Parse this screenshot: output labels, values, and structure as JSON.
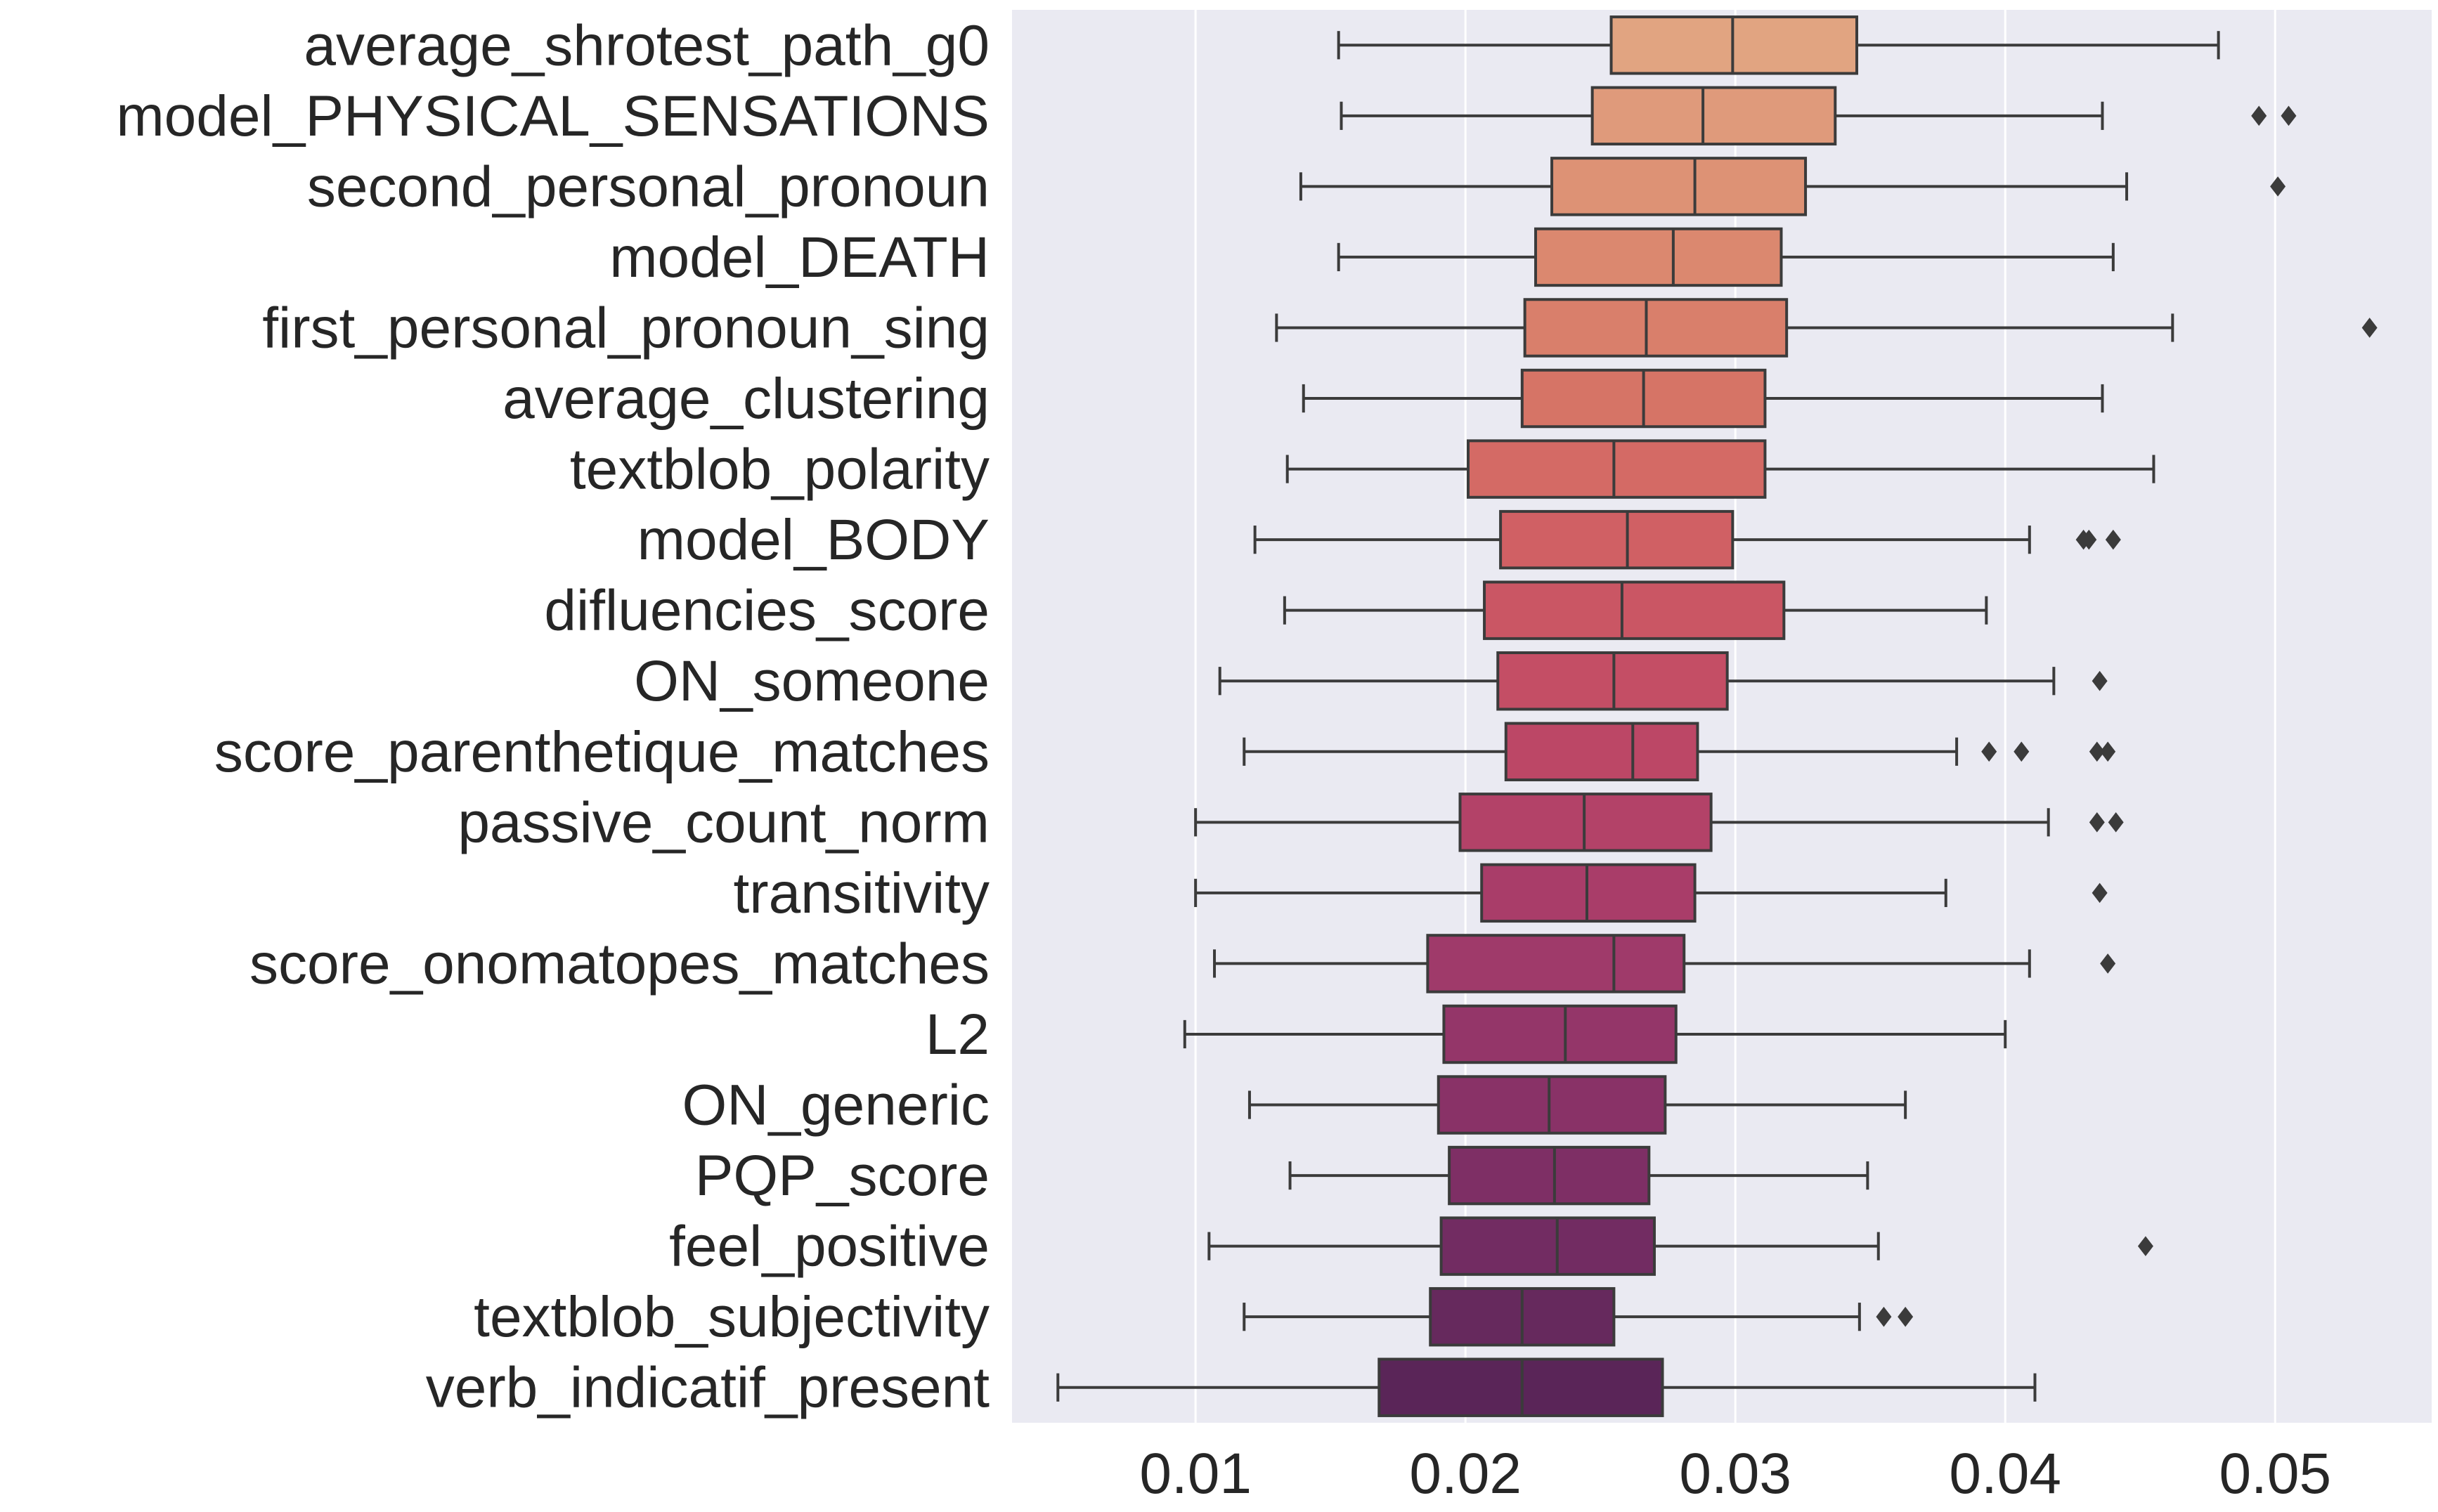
{
  "chart_data": {
    "type": "boxplot",
    "orientation": "horizontal",
    "title": "",
    "xlabel": "",
    "ylabel": "",
    "xlim": [
      0.0032,
      0.0558
    ],
    "xticks": [
      0.01,
      0.02,
      0.03,
      0.04,
      0.05
    ],
    "xtick_labels": [
      "0.01",
      "0.02",
      "0.03",
      "0.04",
      "0.05"
    ],
    "grid": "vertical",
    "background": "#eaeaf2",
    "categories": [
      {
        "label": "average_shrotest_path_g0",
        "whislo": 0.0153,
        "q1": 0.0254,
        "med": 0.0299,
        "q3": 0.0345,
        "whishi": 0.0479,
        "fliers": [],
        "color": "#e1a481"
      },
      {
        "label": "model_PHYSICAL_SENSATIONS",
        "whislo": 0.0154,
        "q1": 0.0247,
        "med": 0.0288,
        "q3": 0.0337,
        "whishi": 0.0436,
        "fliers": [
          0.0494,
          0.0505
        ],
        "color": "#df9a7b"
      },
      {
        "label": "second_personal_pronoun",
        "whislo": 0.0139,
        "q1": 0.0232,
        "med": 0.0285,
        "q3": 0.0326,
        "whishi": 0.0445,
        "fliers": [
          0.0501
        ],
        "color": "#dd9275"
      },
      {
        "label": "model_DEATH",
        "whislo": 0.0153,
        "q1": 0.0226,
        "med": 0.0277,
        "q3": 0.0317,
        "whishi": 0.044,
        "fliers": [],
        "color": "#db886f"
      },
      {
        "label": "first_personal_pronoun_sing",
        "whislo": 0.013,
        "q1": 0.0222,
        "med": 0.0267,
        "q3": 0.0319,
        "whishi": 0.0462,
        "fliers": [
          0.0535
        ],
        "color": "#d97f6b"
      },
      {
        "label": "average_clustering",
        "whislo": 0.014,
        "q1": 0.0221,
        "med": 0.0266,
        "q3": 0.0311,
        "whishi": 0.0436,
        "fliers": [],
        "color": "#d67466"
      },
      {
        "label": "textblob_polarity",
        "whislo": 0.0134,
        "q1": 0.0201,
        "med": 0.0255,
        "q3": 0.0311,
        "whishi": 0.0455,
        "fliers": [],
        "color": "#d46a65"
      },
      {
        "label": "model_BODY",
        "whislo": 0.0122,
        "q1": 0.0213,
        "med": 0.026,
        "q3": 0.0299,
        "whishi": 0.0409,
        "fliers": [
          0.0429,
          0.0431,
          0.044
        ],
        "color": "#d06064"
      },
      {
        "label": "difluencies_score",
        "whislo": 0.0133,
        "q1": 0.0207,
        "med": 0.0258,
        "q3": 0.0318,
        "whishi": 0.0393,
        "fliers": [],
        "color": "#ca5664"
      },
      {
        "label": "ON_someone",
        "whislo": 0.0109,
        "q1": 0.0212,
        "med": 0.0255,
        "q3": 0.0297,
        "whishi": 0.0418,
        "fliers": [
          0.0435
        ],
        "color": "#c44e65"
      },
      {
        "label": "score_parenthetique_matches",
        "whislo": 0.0118,
        "q1": 0.0215,
        "med": 0.0262,
        "q3": 0.0286,
        "whishi": 0.0382,
        "fliers": [
          0.0394,
          0.0406,
          0.0434,
          0.0438
        ],
        "color": "#bc4766"
      },
      {
        "label": "passive_count_norm",
        "whislo": 0.01,
        "q1": 0.0198,
        "med": 0.0244,
        "q3": 0.0291,
        "whishi": 0.0416,
        "fliers": [
          0.0434,
          0.0441
        ],
        "color": "#b34268"
      },
      {
        "label": "transitivity",
        "whislo": 0.01,
        "q1": 0.0206,
        "med": 0.0245,
        "q3": 0.0285,
        "whishi": 0.0378,
        "fliers": [
          0.0435
        ],
        "color": "#a93d69"
      },
      {
        "label": "score_onomatopes_matches",
        "whislo": 0.0107,
        "q1": 0.0186,
        "med": 0.0255,
        "q3": 0.0281,
        "whishi": 0.0409,
        "fliers": [
          0.0438
        ],
        "color": "#9f3a6a"
      },
      {
        "label": "L2",
        "whislo": 0.0096,
        "q1": 0.0192,
        "med": 0.0237,
        "q3": 0.0278,
        "whishi": 0.04,
        "fliers": [],
        "color": "#943669"
      },
      {
        "label": "ON_generic",
        "whislo": 0.012,
        "q1": 0.019,
        "med": 0.0231,
        "q3": 0.0274,
        "whishi": 0.0363,
        "fliers": [],
        "color": "#893267"
      },
      {
        "label": "PQP_score",
        "whislo": 0.0135,
        "q1": 0.0194,
        "med": 0.0233,
        "q3": 0.0268,
        "whishi": 0.0349,
        "fliers": [],
        "color": "#7e2f65"
      },
      {
        "label": "feel_positive",
        "whislo": 0.0105,
        "q1": 0.0191,
        "med": 0.0234,
        "q3": 0.027,
        "whishi": 0.0353,
        "fliers": [
          0.0452
        ],
        "color": "#722c62"
      },
      {
        "label": "textblob_subjectivity",
        "whislo": 0.0118,
        "q1": 0.0187,
        "med": 0.0221,
        "q3": 0.0255,
        "whishi": 0.0346,
        "fliers": [
          0.0355,
          0.0363
        ],
        "color": "#66295d"
      },
      {
        "label": "verb_indicatif_present",
        "whislo": 0.0049,
        "q1": 0.0168,
        "med": 0.0221,
        "q3": 0.0273,
        "whishi": 0.0411,
        "fliers": [],
        "color": "#5a2558"
      }
    ]
  }
}
